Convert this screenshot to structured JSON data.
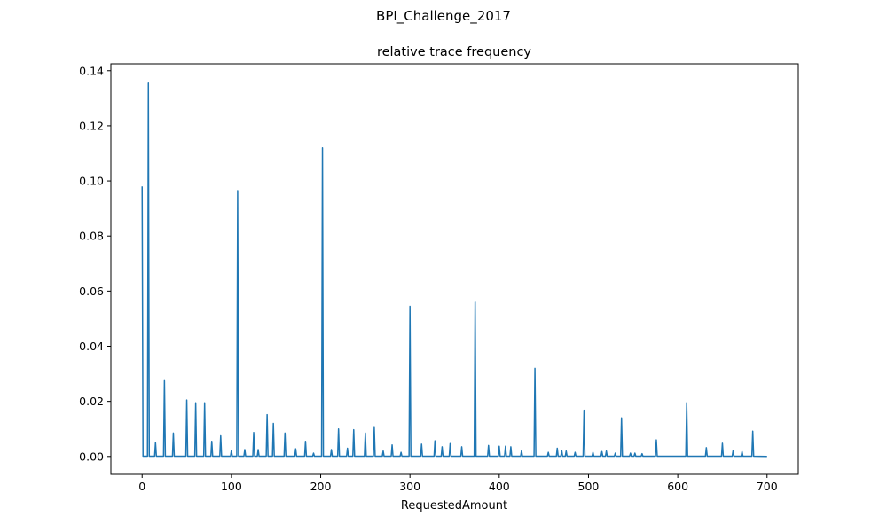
{
  "chart_data": {
    "type": "line",
    "suptitle": "BPI_Challenge_2017",
    "title": "relative trace frequency",
    "xlabel": "RequestedAmount",
    "ylabel": "",
    "xlim": [
      -35,
      735
    ],
    "ylim": [
      -0.0065,
      0.1425
    ],
    "xticks": [
      0,
      100,
      200,
      300,
      400,
      500,
      600,
      700
    ],
    "yticks": [
      0.0,
      0.02,
      0.04,
      0.06,
      0.08,
      0.1,
      0.12,
      0.14
    ],
    "xtick_labels": [
      "0",
      "100",
      "200",
      "300",
      "400",
      "500",
      "600",
      "700"
    ],
    "ytick_labels": [
      "0.00",
      "0.02",
      "0.04",
      "0.06",
      "0.08",
      "0.10",
      "0.12",
      "0.14"
    ],
    "grid": false,
    "legend": "none",
    "series": [
      {
        "color": "#1f77b4",
        "peaks": [
          [
            0,
            0.098
          ],
          [
            7,
            0.1355
          ],
          [
            15,
            0.005
          ],
          [
            25,
            0.0275
          ],
          [
            35,
            0.0085
          ],
          [
            50,
            0.0205
          ],
          [
            60,
            0.0195
          ],
          [
            70,
            0.0195
          ],
          [
            78,
            0.0055
          ],
          [
            88,
            0.0075
          ],
          [
            100,
            0.0022
          ],
          [
            107,
            0.0965
          ],
          [
            115,
            0.0025
          ],
          [
            125,
            0.0087
          ],
          [
            130,
            0.0025
          ],
          [
            140,
            0.0152
          ],
          [
            147,
            0.012
          ],
          [
            160,
            0.0085
          ],
          [
            172,
            0.0028
          ],
          [
            183,
            0.0055
          ],
          [
            192,
            0.0012
          ],
          [
            202,
            0.112
          ],
          [
            212,
            0.0025
          ],
          [
            220,
            0.01
          ],
          [
            230,
            0.003
          ],
          [
            237,
            0.0097
          ],
          [
            250,
            0.0085
          ],
          [
            260,
            0.0105
          ],
          [
            270,
            0.002
          ],
          [
            280,
            0.0042
          ],
          [
            290,
            0.0015
          ],
          [
            300,
            0.0545
          ],
          [
            313,
            0.0045
          ],
          [
            328,
            0.0057
          ],
          [
            336,
            0.0035
          ],
          [
            345,
            0.0047
          ],
          [
            358,
            0.0035
          ],
          [
            373,
            0.056
          ],
          [
            388,
            0.004
          ],
          [
            400,
            0.0037
          ],
          [
            407,
            0.0037
          ],
          [
            413,
            0.0035
          ],
          [
            425,
            0.0022
          ],
          [
            440,
            0.032
          ],
          [
            455,
            0.0015
          ],
          [
            465,
            0.003
          ],
          [
            470,
            0.0022
          ],
          [
            475,
            0.002
          ],
          [
            485,
            0.0015
          ],
          [
            495,
            0.0168
          ],
          [
            505,
            0.0015
          ],
          [
            515,
            0.0018
          ],
          [
            520,
            0.002
          ],
          [
            530,
            0.0012
          ],
          [
            537,
            0.014
          ],
          [
            547,
            0.0012
          ],
          [
            552,
            0.0012
          ],
          [
            560,
            0.001
          ],
          [
            576,
            0.006
          ],
          [
            610,
            0.0195
          ],
          [
            632,
            0.0032
          ],
          [
            650,
            0.0048
          ],
          [
            662,
            0.0022
          ],
          [
            672,
            0.0018
          ],
          [
            684,
            0.0092
          ],
          [
            700,
            0.0
          ]
        ]
      }
    ]
  }
}
